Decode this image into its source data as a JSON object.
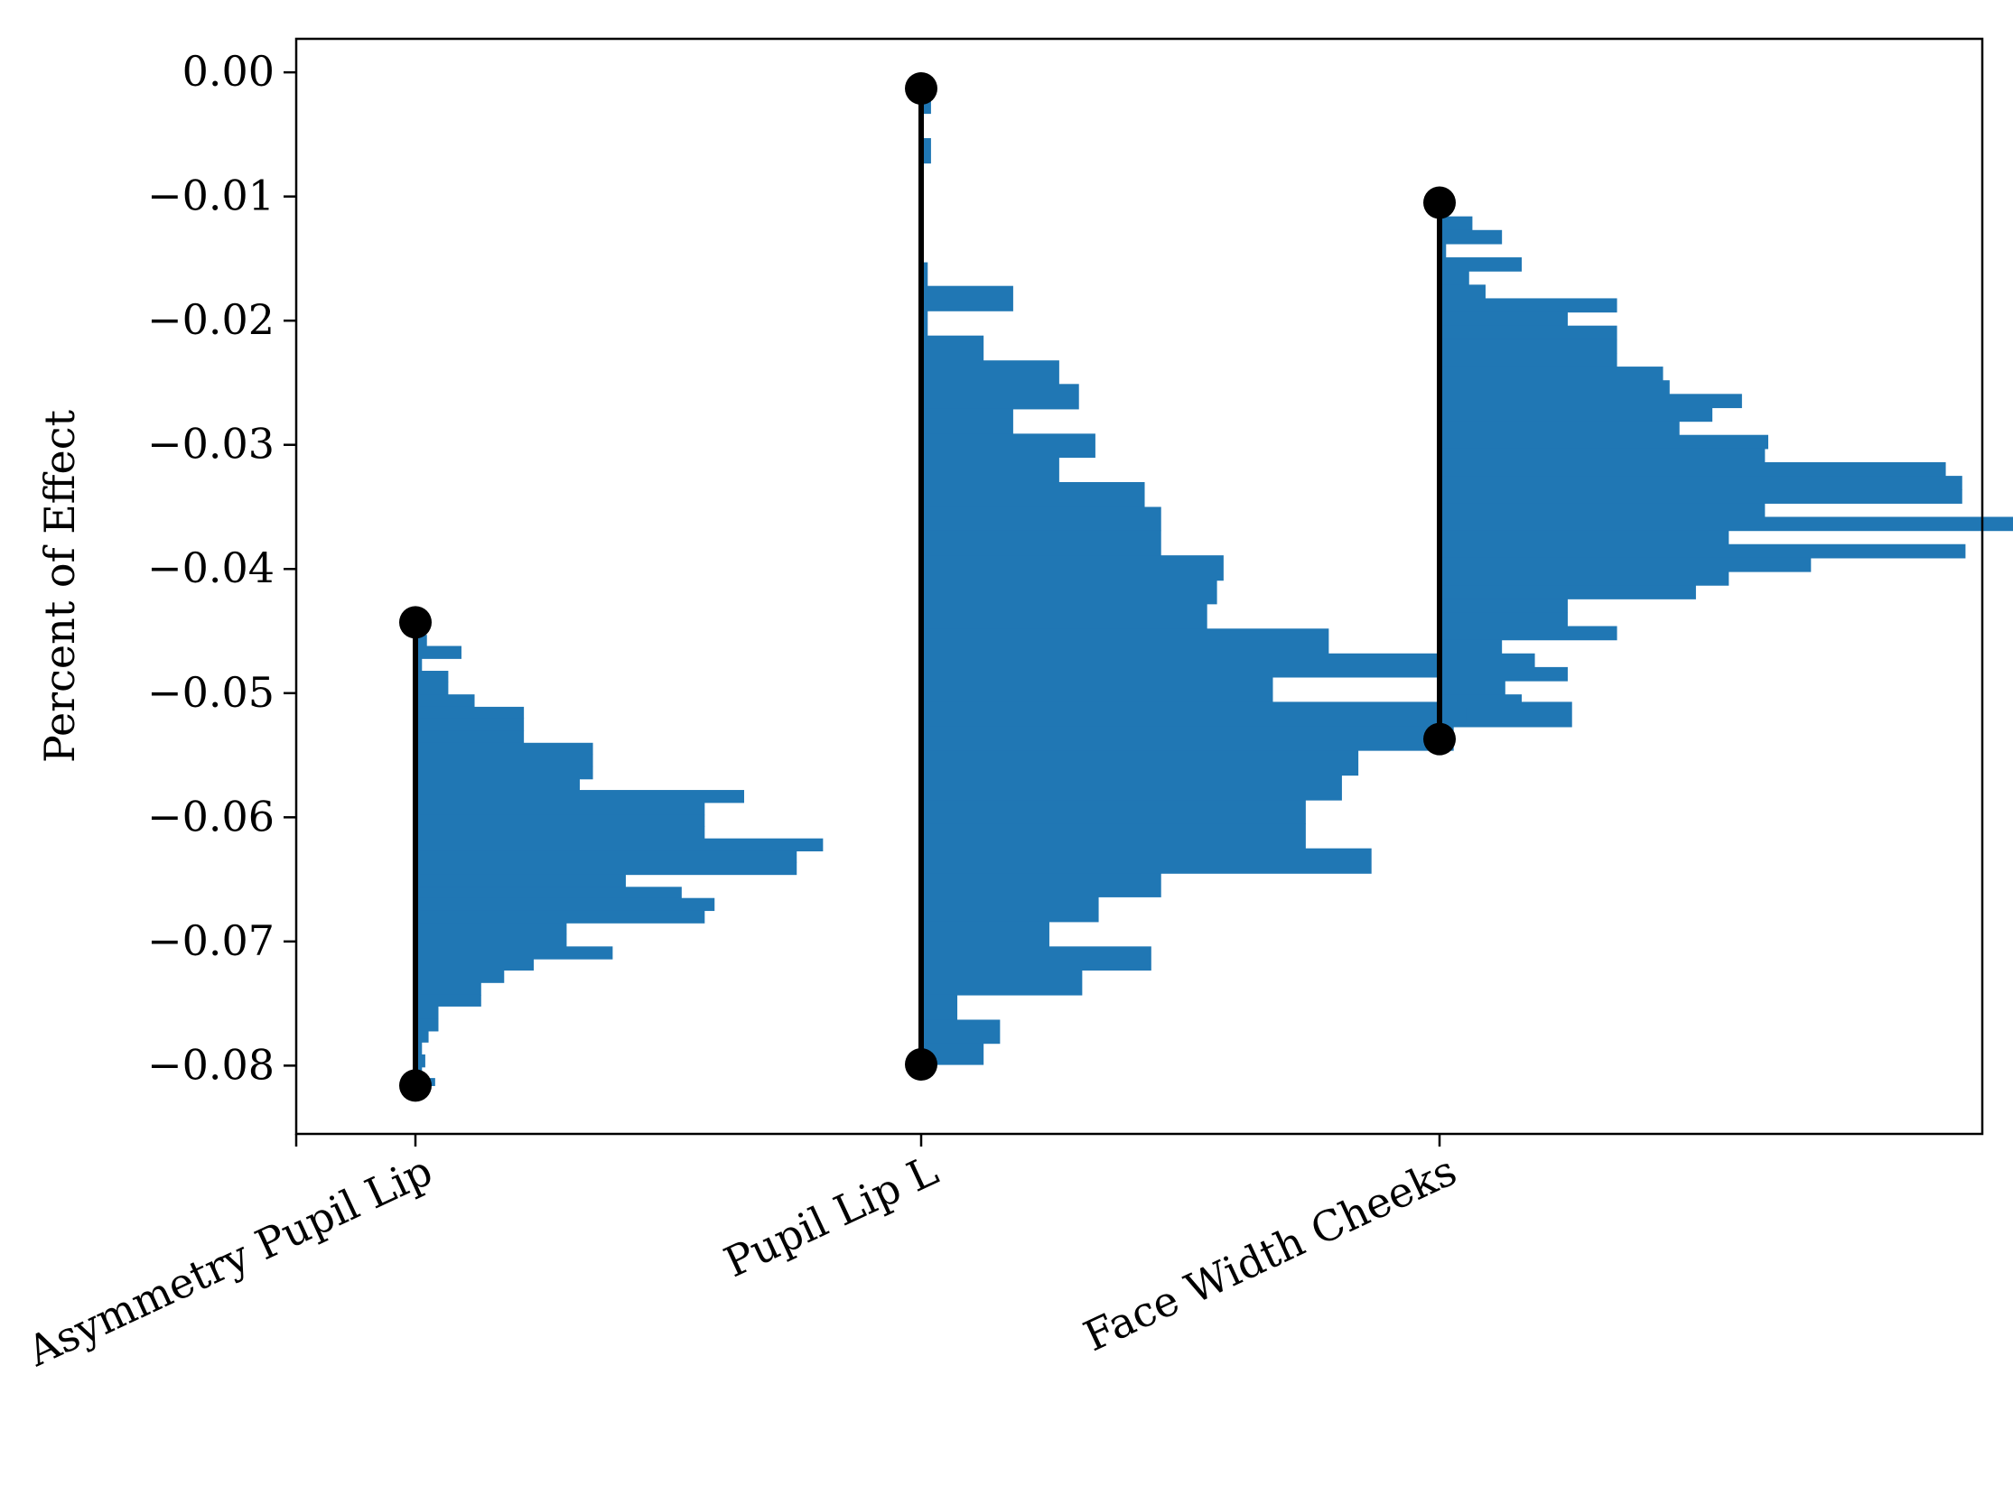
{
  "chart_data": {
    "type": "violin-histogram",
    "ylabel": "Percent of Effect",
    "ylim": [
      -0.0855,
      0.0027
    ],
    "y_ticks": [
      "0.00",
      "−0.01",
      "−0.02",
      "−0.03",
      "−0.04",
      "−0.05",
      "−0.06",
      "−0.07",
      "−0.08"
    ],
    "y_tick_values": [
      0.0,
      -0.01,
      -0.02,
      -0.03,
      -0.04,
      -0.05,
      -0.06,
      -0.07,
      -0.08
    ],
    "x_labels_rotation_deg": -25,
    "bar_color": "#2077b4",
    "range_color": "#000000",
    "series": [
      {
        "name": "Asymmetry Pupil Lip",
        "x": 0.0,
        "range": [
          -0.0443,
          -0.0816
        ],
        "bins": [
          [
            -0.0443,
            -0.0453,
            0.2
          ],
          [
            -0.0453,
            -0.0462,
            0.35
          ],
          [
            -0.0462,
            -0.0472,
            1.4
          ],
          [
            -0.0472,
            -0.0482,
            0.2
          ],
          [
            -0.0482,
            -0.0491,
            1.0
          ],
          [
            -0.0491,
            -0.0501,
            1.0
          ],
          [
            -0.0501,
            -0.0511,
            1.8
          ],
          [
            -0.0511,
            -0.052,
            3.3
          ],
          [
            -0.052,
            -0.053,
            3.3
          ],
          [
            -0.053,
            -0.054,
            3.3
          ],
          [
            -0.054,
            -0.0549,
            5.4
          ],
          [
            -0.0549,
            -0.0559,
            5.4
          ],
          [
            -0.0559,
            -0.0569,
            5.4
          ],
          [
            -0.0569,
            -0.0578,
            5.0
          ],
          [
            -0.0578,
            -0.0588,
            10.0
          ],
          [
            -0.0588,
            -0.0598,
            8.8
          ],
          [
            -0.0598,
            -0.0607,
            8.8
          ],
          [
            -0.0607,
            -0.0617,
            8.8
          ],
          [
            -0.0617,
            -0.0627,
            12.4
          ],
          [
            -0.0627,
            -0.0636,
            11.6
          ],
          [
            -0.0636,
            -0.0646,
            11.6
          ],
          [
            -0.0646,
            -0.0656,
            6.4
          ],
          [
            -0.0656,
            -0.0665,
            8.1
          ],
          [
            -0.0665,
            -0.0675,
            9.1
          ],
          [
            -0.0675,
            -0.0685,
            8.8
          ],
          [
            -0.0685,
            -0.0694,
            4.6
          ],
          [
            -0.0694,
            -0.0704,
            4.6
          ],
          [
            -0.0704,
            -0.0714,
            6.0
          ],
          [
            -0.0714,
            -0.0723,
            3.6
          ],
          [
            -0.0723,
            -0.0733,
            2.7
          ],
          [
            -0.0733,
            -0.0743,
            2.0
          ],
          [
            -0.0743,
            -0.0752,
            2.0
          ],
          [
            -0.0752,
            -0.0762,
            0.7
          ],
          [
            -0.0762,
            -0.0772,
            0.7
          ],
          [
            -0.0772,
            -0.0781,
            0.4
          ],
          [
            -0.0781,
            -0.0791,
            0.2
          ],
          [
            -0.0791,
            -0.0801,
            0.3
          ],
          [
            -0.0801,
            -0.081,
            0.2
          ],
          [
            -0.081,
            -0.0816,
            0.6
          ]
        ]
      },
      {
        "name": "Pupil Lip L",
        "x": 1.0,
        "range": [
          -0.0013,
          -0.0799
        ],
        "bins": [
          [
            -0.0013,
            -0.0033,
            0.3
          ],
          [
            -0.0033,
            -0.0053,
            0.0
          ],
          [
            -0.0053,
            -0.0073,
            0.3
          ],
          [
            -0.0073,
            -0.0093,
            0.0
          ],
          [
            -0.0093,
            -0.0113,
            0.0
          ],
          [
            -0.0113,
            -0.0133,
            0.0
          ],
          [
            -0.0133,
            -0.0153,
            0.0
          ],
          [
            -0.0153,
            -0.0172,
            0.2
          ],
          [
            -0.0172,
            -0.0192,
            2.8
          ],
          [
            -0.0192,
            -0.0212,
            0.2
          ],
          [
            -0.0212,
            -0.0232,
            1.9
          ],
          [
            -0.0232,
            -0.0251,
            4.2
          ],
          [
            -0.0251,
            -0.0271,
            4.8
          ],
          [
            -0.0271,
            -0.0291,
            2.8
          ],
          [
            -0.0291,
            -0.031,
            5.3
          ],
          [
            -0.031,
            -0.033,
            4.2
          ],
          [
            -0.033,
            -0.035,
            6.8
          ],
          [
            -0.035,
            -0.0369,
            7.3
          ],
          [
            -0.0369,
            -0.0389,
            7.3
          ],
          [
            -0.0389,
            -0.0409,
            9.2
          ],
          [
            -0.0409,
            -0.0428,
            9.0
          ],
          [
            -0.0428,
            -0.0448,
            8.7
          ],
          [
            -0.0448,
            -0.0468,
            12.4
          ],
          [
            -0.0468,
            -0.0487,
            16.7
          ],
          [
            -0.0487,
            -0.0507,
            10.7
          ],
          [
            -0.0507,
            -0.0527,
            19.8
          ],
          [
            -0.0527,
            -0.0546,
            16.2
          ],
          [
            -0.0546,
            -0.0566,
            13.3
          ],
          [
            -0.0566,
            -0.0586,
            12.8
          ],
          [
            -0.0586,
            -0.0605,
            11.7
          ],
          [
            -0.0605,
            -0.0625,
            11.7
          ],
          [
            -0.0625,
            -0.0645,
            13.7
          ],
          [
            -0.0645,
            -0.0664,
            7.3
          ],
          [
            -0.0664,
            -0.0684,
            5.4
          ],
          [
            -0.0684,
            -0.0704,
            3.9
          ],
          [
            -0.0704,
            -0.0723,
            7.0
          ],
          [
            -0.0723,
            -0.0743,
            4.9
          ],
          [
            -0.0743,
            -0.0763,
            1.1
          ],
          [
            -0.0763,
            -0.0782,
            2.4
          ],
          [
            -0.0782,
            -0.0799,
            1.9
          ]
        ]
      },
      {
        "name": "Face Width Cheeks",
        "x": 2.0,
        "range": [
          -0.0105,
          -0.0537
        ],
        "bins": [
          [
            -0.0105,
            -0.0116,
            0.2
          ],
          [
            -0.0116,
            -0.0127,
            1.0
          ],
          [
            -0.0127,
            -0.0138,
            1.9
          ],
          [
            -0.0138,
            -0.0149,
            0.2
          ],
          [
            -0.0149,
            -0.016,
            2.5
          ],
          [
            -0.016,
            -0.0171,
            0.9
          ],
          [
            -0.0171,
            -0.0182,
            1.4
          ],
          [
            -0.0182,
            -0.0193,
            5.4
          ],
          [
            -0.0193,
            -0.0204,
            3.9
          ],
          [
            -0.0204,
            -0.0215,
            5.4
          ],
          [
            -0.0215,
            -0.0226,
            5.4
          ],
          [
            -0.0226,
            -0.0237,
            5.4
          ],
          [
            -0.0237,
            -0.0248,
            6.8
          ],
          [
            -0.0248,
            -0.0259,
            7.0
          ],
          [
            -0.0259,
            -0.027,
            9.2
          ],
          [
            -0.027,
            -0.0281,
            8.3
          ],
          [
            -0.0281,
            -0.0292,
            7.3
          ],
          [
            -0.0292,
            -0.0303,
            10.0
          ],
          [
            -0.0303,
            -0.0314,
            9.9
          ],
          [
            -0.0314,
            -0.0325,
            15.4
          ],
          [
            -0.0325,
            -0.0336,
            15.9
          ],
          [
            -0.0336,
            -0.0347,
            15.9
          ],
          [
            -0.0347,
            -0.0358,
            9.9
          ],
          [
            -0.0358,
            -0.0369,
            19.0
          ],
          [
            -0.0369,
            -0.038,
            8.8
          ],
          [
            -0.038,
            -0.0391,
            16.0
          ],
          [
            -0.0391,
            -0.0402,
            11.3
          ],
          [
            -0.0402,
            -0.0413,
            8.8
          ],
          [
            -0.0413,
            -0.0424,
            7.8
          ],
          [
            -0.0424,
            -0.0435,
            3.9
          ],
          [
            -0.0435,
            -0.0446,
            3.9
          ],
          [
            -0.0446,
            -0.0457,
            5.4
          ],
          [
            -0.0457,
            -0.0468,
            1.9
          ],
          [
            -0.0468,
            -0.0479,
            2.9
          ],
          [
            -0.0479,
            -0.049,
            3.9
          ],
          [
            -0.049,
            -0.0501,
            2.0
          ],
          [
            -0.0501,
            -0.0512,
            2.5
          ],
          [
            -0.0512,
            -0.0523,
            0.8
          ],
          [
            -0.0523,
            -0.0537,
            0.2
          ]
        ]
      }
    ]
  }
}
